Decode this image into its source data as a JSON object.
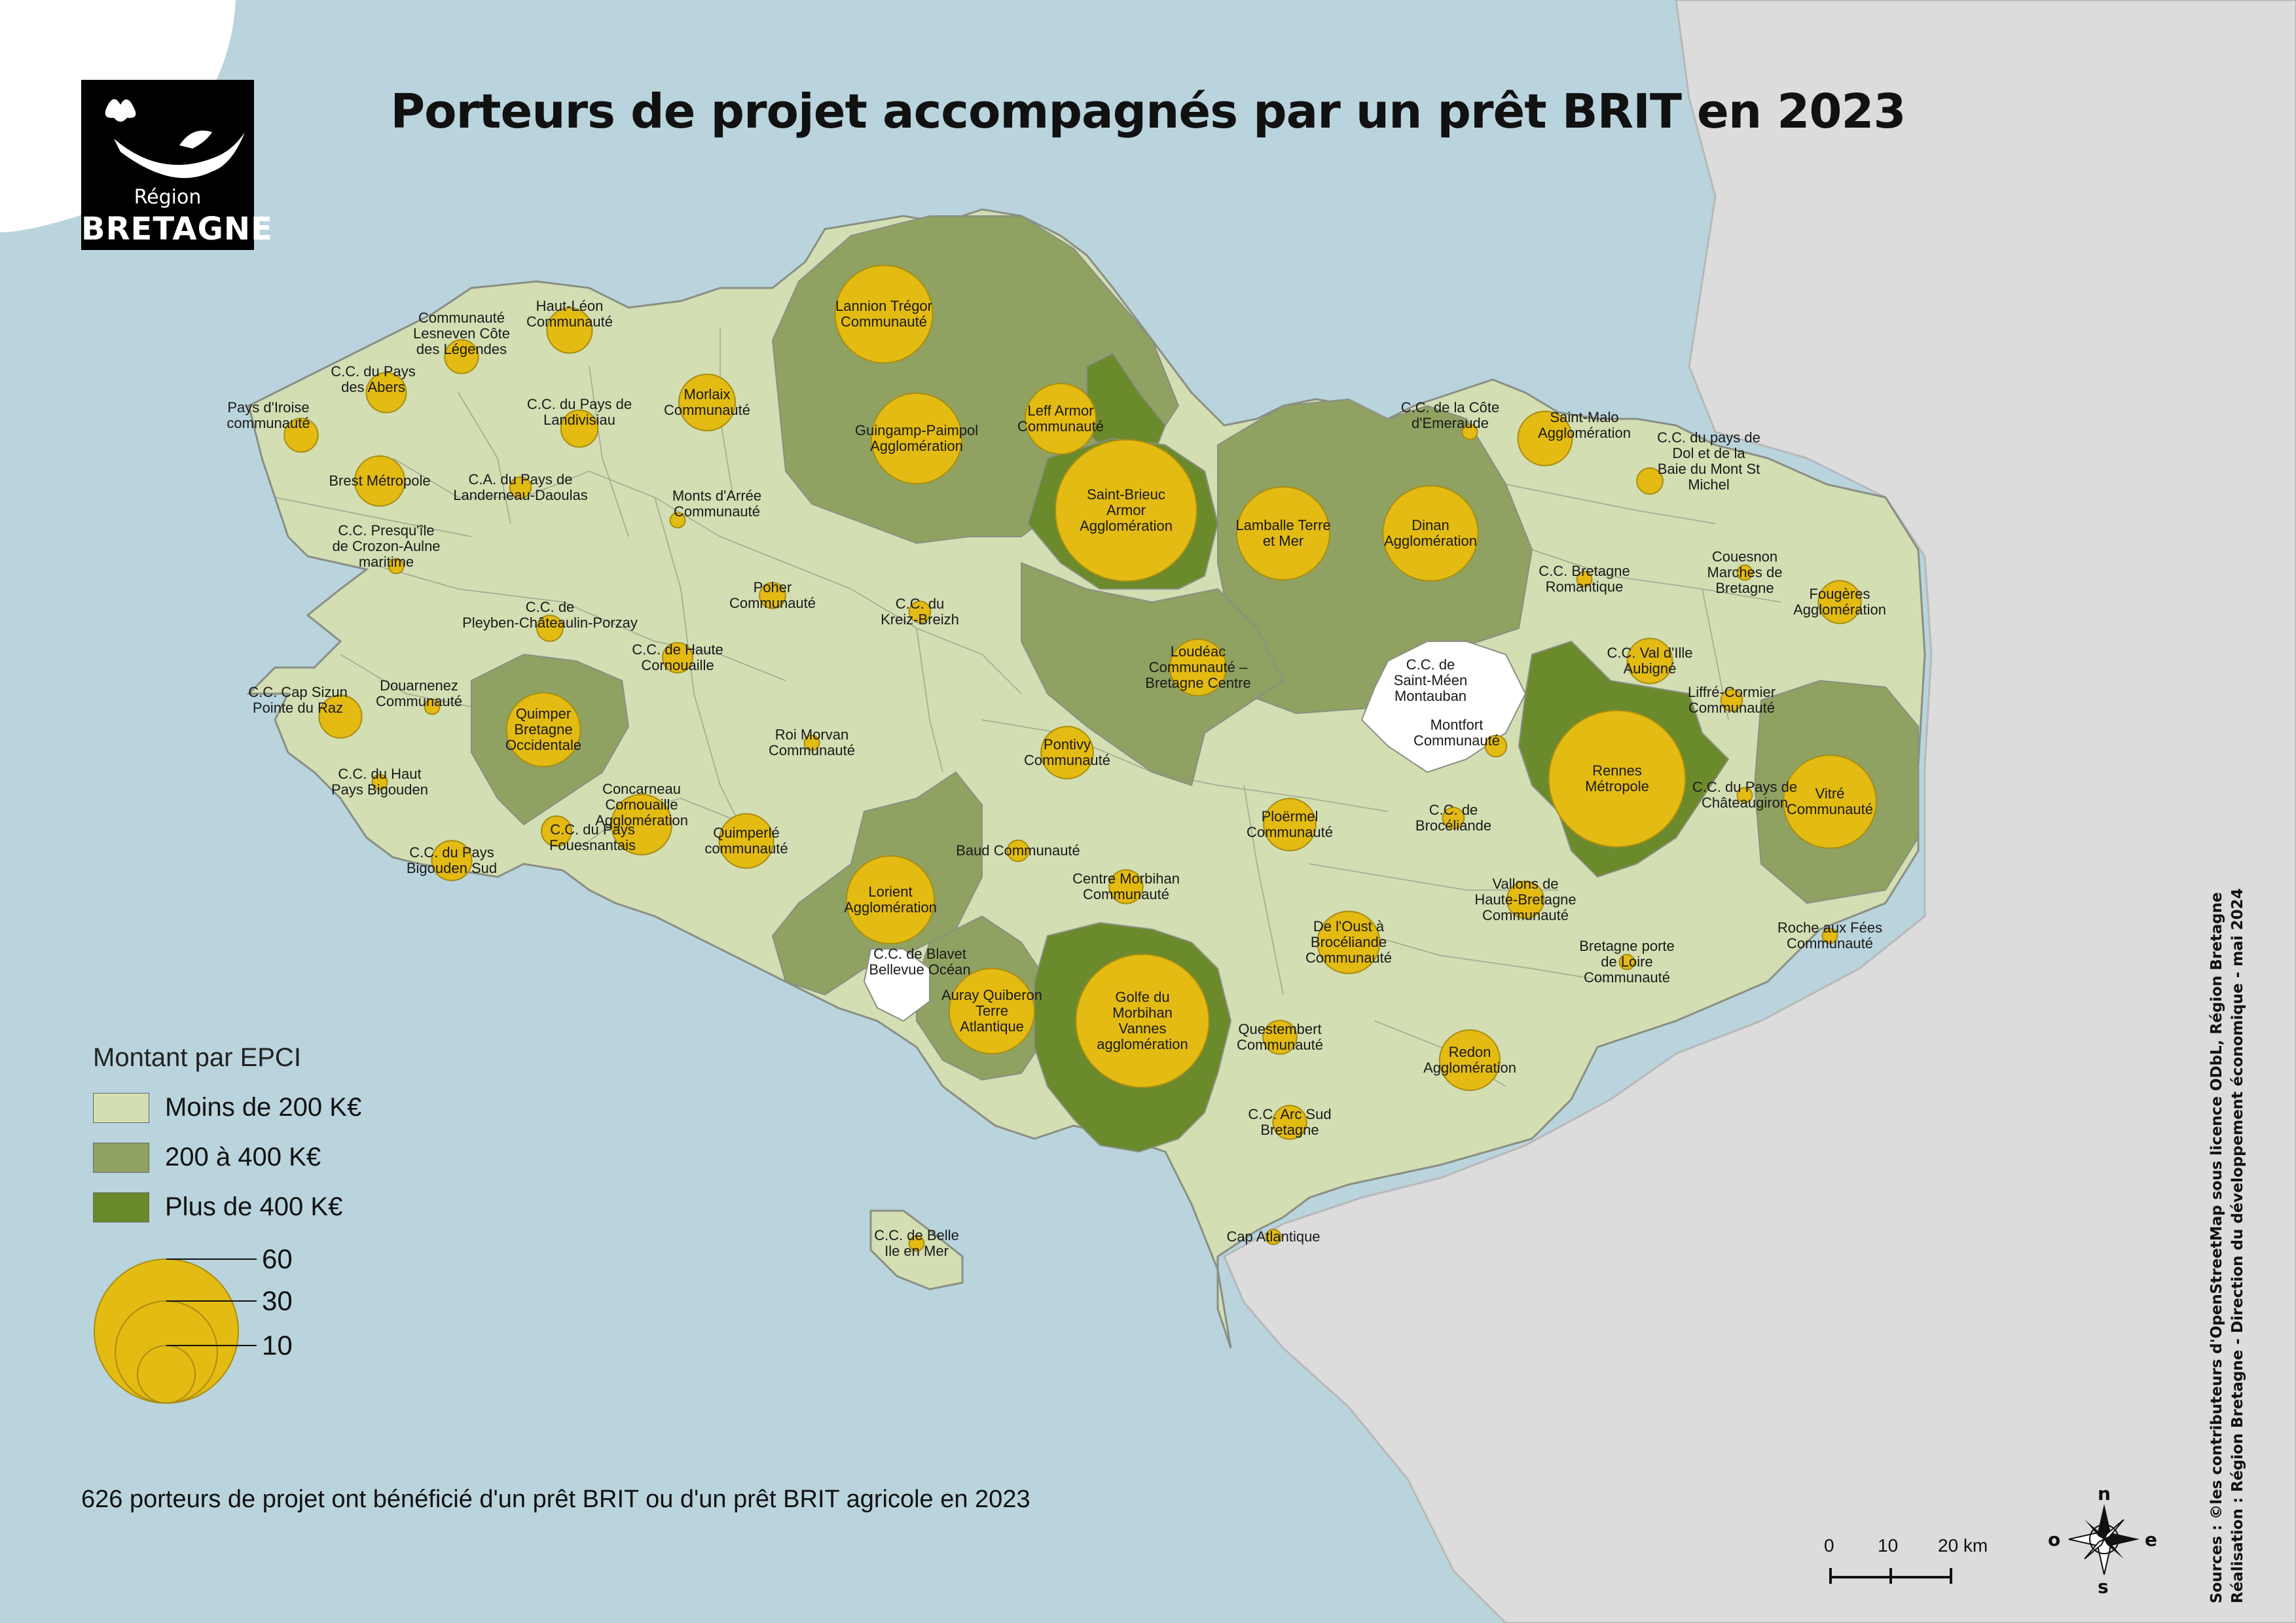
{
  "title": "Porteurs de projet accompagnés par un prêt BRIT en 2023",
  "logo": {
    "region": "Région",
    "name": "BRETAGNE",
    "icon": "hermine-icon"
  },
  "colors": {
    "sea": "#b9d4dd",
    "land_outside": "#dcdcdc",
    "class_low": "#d3deb3",
    "class_mid": "#8fa262",
    "class_high": "#6b8a2b",
    "no_data": "#ffffff",
    "circle": "#e3bb12",
    "circle_border": "#a88d12"
  },
  "legend": {
    "title": "Montant par EPCI",
    "classes": [
      {
        "label": "Moins de 200 K€",
        "color": "#d3deb3"
      },
      {
        "label": "200 à 400 K€",
        "color": "#8fa262"
      },
      {
        "label": "Plus de 400 K€",
        "color": "#6b8a2b"
      }
    ],
    "sizes": [
      "60",
      "30",
      "10"
    ]
  },
  "note": "626 porteurs de projet ont bénéficié d'un prêt BRIT ou d'un prêt BRIT agricole en 2023",
  "sources": {
    "line1": "Sources : ©les contributeurs d'OpenStreetMap sous licence ODbL, Région Bretagne",
    "line2": "Réalisation : Région Bretagne - Direction du développement économique - mai 2024"
  },
  "scale": {
    "labels": [
      "0",
      "10",
      "20 km"
    ]
  },
  "compass": {
    "n": "n",
    "s": "s",
    "e": "e",
    "o": "o"
  },
  "epci": [
    {
      "name": "Lannion Trégor Communauté",
      "lines": [
        "Lannion Trégor",
        "Communauté"
      ],
      "value": 42,
      "class": "mid"
    },
    {
      "name": "Guingamp-Paimpol Agglomération",
      "lines": [
        "Guingamp-Paimpol",
        "Agglomération"
      ],
      "value": 36,
      "class": "mid"
    },
    {
      "name": "Leff Armor Communauté",
      "lines": [
        "Leff Armor",
        "Communauté"
      ],
      "value": 22,
      "class": "high"
    },
    {
      "name": "Saint-Brieuc Armor Agglomération",
      "lines": [
        "Saint-Brieuc",
        "Armor",
        "Agglomération"
      ],
      "value": 88,
      "class": "high"
    },
    {
      "name": "Lamballe Terre et Mer",
      "lines": [
        "Lamballe Terre",
        "et Mer"
      ],
      "value": 38,
      "class": "mid"
    },
    {
      "name": "Dinan Agglomération",
      "lines": [
        "Dinan",
        "Agglomération"
      ],
      "value": 40,
      "class": "mid"
    },
    {
      "name": "C.C. de la Côte d'Emeraude",
      "lines": [
        "C.C. de la Côte",
        "d'Emeraude"
      ],
      "value": 1,
      "class": "low"
    },
    {
      "name": "Saint-Malo Agglomération",
      "lines": [
        "Saint-Malo",
        "Agglomération"
      ],
      "value": 13,
      "class": "low"
    },
    {
      "name": "C.C. du pays de Dol et de la Baie du Mont St Michel",
      "lines": [
        "C.C. du pays de",
        "Dol et de la",
        "Baie du Mont St",
        "Michel"
      ],
      "value": 3,
      "class": "low"
    },
    {
      "name": "Couesnon Marches de Bretagne",
      "lines": [
        "Couesnon",
        "Marches de",
        "Bretagne"
      ],
      "value": 1,
      "class": "low"
    },
    {
      "name": "Fougères Agglomération",
      "lines": [
        "Fougères",
        "Agglomération"
      ],
      "value": 8,
      "class": "low"
    },
    {
      "name": "C.C. Bretagne Romantique",
      "lines": [
        "C.C. Bretagne",
        "Romantique"
      ],
      "value": 1,
      "class": "low"
    },
    {
      "name": "C.C. Val d'Ille Aubigné",
      "lines": [
        "C.C. Val d'Ille",
        "Aubigné"
      ],
      "value": 9,
      "class": "low"
    },
    {
      "name": "Liffré-Cormier Communauté",
      "lines": [
        "Liffré-Cormier",
        "Communauté"
      ],
      "value": 2,
      "class": "low"
    },
    {
      "name": "Rennes Métropole",
      "lines": [
        "Rennes",
        "Métropole"
      ],
      "value": 82,
      "class": "high"
    },
    {
      "name": "Vitré Communauté",
      "lines": [
        "Vitré",
        "Communauté"
      ],
      "value": 38,
      "class": "mid"
    },
    {
      "name": "C.C. du Pays de Châteaugiron",
      "lines": [
        "C.C. du Pays de",
        "Châteaugiron"
      ],
      "value": 1,
      "class": "low"
    },
    {
      "name": "C.C. de Saint-Méen Montauban",
      "lines": [
        "C.C. de",
        "Saint-Méen",
        "Montauban"
      ],
      "value": 0,
      "class": "none"
    },
    {
      "name": "Montfort Communauté",
      "lines": [
        "Montfort",
        "Communauté"
      ],
      "value": 2,
      "class": "low"
    },
    {
      "name": "C.C. de Brocéliande",
      "lines": [
        "C.C. de",
        "Brocéliande"
      ],
      "value": 2,
      "class": "low"
    },
    {
      "name": "Vallons de Haute-Bretagne Communauté",
      "lines": [
        "Vallons de",
        "Haute-Bretagne",
        "Communauté"
      ],
      "value": 6,
      "class": "low"
    },
    {
      "name": "Roche aux Fées Communauté",
      "lines": [
        "Roche aux Fées",
        "Communauté"
      ],
      "value": 1,
      "class": "low"
    },
    {
      "name": "Bretagne porte de Loire Communauté",
      "lines": [
        "Bretagne porte",
        "de Loire",
        "Communauté"
      ],
      "value": 1,
      "class": "low"
    },
    {
      "name": "Redon Agglomération",
      "lines": [
        "Redon",
        "Agglomération"
      ],
      "value": 16,
      "class": "low"
    },
    {
      "name": "Loudéac Communauté - Bretagne Centre",
      "lines": [
        "Loudéac",
        "Communauté –",
        "Bretagne Centre"
      ],
      "value": 14,
      "class": "mid"
    },
    {
      "name": "Ploërmel Communauté",
      "lines": [
        "Ploërmel",
        "Communauté"
      ],
      "value": 12,
      "class": "low"
    },
    {
      "name": "De l'Oust à Brocéliande Communauté",
      "lines": [
        "De l'Oust à",
        "Brocéliande",
        "Communauté"
      ],
      "value": 17,
      "class": "low"
    },
    {
      "name": "Questembert Communauté",
      "lines": [
        "Questembert",
        "Communauté"
      ],
      "value": 5,
      "class": "low"
    },
    {
      "name": "C.C. Arc Sud Bretagne",
      "lines": [
        "C.C. Arc Sud",
        "Bretagne"
      ],
      "value": 5,
      "class": "low"
    },
    {
      "name": "Cap Atlantique",
      "lines": [
        "Cap Atlantique"
      ],
      "value": 1,
      "class": "low"
    },
    {
      "name": "Golfe du Morbihan Vannes agglomération",
      "lines": [
        "Golfe du",
        "Morbihan",
        "Vannes",
        "agglomération"
      ],
      "value": 78,
      "class": "high"
    },
    {
      "name": "Auray Quiberon Terre Atlantique",
      "lines": [
        "Auray Quiberon",
        "Terre",
        "Atlantique"
      ],
      "value": 32,
      "class": "mid"
    },
    {
      "name": "C.C. de Blavet Bellevue Océan",
      "lines": [
        "C.C. de Blavet",
        "Bellevue Océan"
      ],
      "value": 0,
      "class": "none"
    },
    {
      "name": "Lorient Agglomération",
      "lines": [
        "Lorient",
        "Agglomération"
      ],
      "value": 34,
      "class": "mid"
    },
    {
      "name": "Centre Morbihan Communauté",
      "lines": [
        "Centre Morbihan",
        "Communauté"
      ],
      "value": 5,
      "class": "low"
    },
    {
      "name": "Baud Communauté",
      "lines": [
        "Baud Communauté"
      ],
      "value": 2,
      "class": "low"
    },
    {
      "name": "Pontivy Communauté",
      "lines": [
        "Pontivy",
        "Communauté"
      ],
      "value": 12,
      "class": "low"
    },
    {
      "name": "Roi Morvan Communauté",
      "lines": [
        "Roi Morvan",
        "Communauté"
      ],
      "value": 1,
      "class": "low"
    },
    {
      "name": "Quimperlé communauté",
      "lines": [
        "Quimperlé",
        "communauté"
      ],
      "value": 13,
      "class": "low"
    },
    {
      "name": "Concarneau Cornouaille Agglomération",
      "lines": [
        "Concarneau",
        "Cornouaille",
        "Agglomération"
      ],
      "value": 16,
      "class": "low"
    },
    {
      "name": "C.C. du Pays Fouesnantais",
      "lines": [
        "C.C. du Pays",
        "Fouesnantais"
      ],
      "value": 4,
      "class": "low"
    },
    {
      "name": "C.C. du Pays Bigouden Sud",
      "lines": [
        "C.C. du Pays",
        "Bigouden Sud"
      ],
      "value": 7,
      "class": "low"
    },
    {
      "name": "C.C. du Haut Pays Bigouden",
      "lines": [
        "C.C. du Haut",
        "Pays Bigouden"
      ],
      "value": 1,
      "class": "low"
    },
    {
      "name": "Quimper Bretagne Occidentale",
      "lines": [
        "Quimper",
        "Bretagne",
        "Occidentale"
      ],
      "value": 24,
      "class": "mid"
    },
    {
      "name": "C.C. Cap Sizun Pointe du Raz",
      "lines": [
        "C.C. Cap Sizun",
        "Pointe du Raz"
      ],
      "value": 8,
      "class": "low"
    },
    {
      "name": "Douarnenez Communauté",
      "lines": [
        "Douarnenez",
        "Communauté"
      ],
      "value": 1,
      "class": "low"
    },
    {
      "name": "C.C. de Pleyben-Châteaulin-Porzay",
      "lines": [
        "C.C. de",
        "Pleyben-Châteaulin-Porzay"
      ],
      "value": 3,
      "class": "low"
    },
    {
      "name": "C.C. de Haute Cornouaille",
      "lines": [
        "C.C. de Haute",
        "Cornouaille"
      ],
      "value": 4,
      "class": "low"
    },
    {
      "name": "Poher Communauté",
      "lines": [
        "Poher",
        "Communauté"
      ],
      "value": 3,
      "class": "low"
    },
    {
      "name": "C.C. du Kreiz-Breizh",
      "lines": [
        "C.C. du",
        "Kreiz-Breizh"
      ],
      "value": 2,
      "class": "low"
    },
    {
      "name": "Monts d'Arrée Communauté",
      "lines": [
        "Monts d'Arrée",
        "Communauté"
      ],
      "value": 1,
      "class": "low"
    },
    {
      "name": "C.C. Presqu'île de Crozon-Aulne maritime",
      "lines": [
        "C.C. Presqu'île",
        "de Crozon-Aulne",
        "maritime"
      ],
      "value": 1,
      "class": "low"
    },
    {
      "name": "Brest Métropole",
      "lines": [
        "Brest Métropole"
      ],
      "value": 11,
      "class": "low"
    },
    {
      "name": "C.A. du Pays de Landerneau-Daoulas",
      "lines": [
        "C.A. du Pays de",
        "Landerneau-Daoulas"
      ],
      "value": 2,
      "class": "low"
    },
    {
      "name": "Pays d'Iroise communauté",
      "lines": [
        "Pays d'Iroise",
        "communauté"
      ],
      "value": 5,
      "class": "low"
    },
    {
      "name": "C.C. du Pays des Abers",
      "lines": [
        "C.C. du Pays",
        "des Abers"
      ],
      "value": 7,
      "class": "low"
    },
    {
      "name": "Communauté Lesneven Côte des Légendes",
      "lines": [
        "Communauté",
        "Lesneven Côte",
        "des Légendes"
      ],
      "value": 5,
      "class": "low"
    },
    {
      "name": "Haut-Léon Communauté",
      "lines": [
        "Haut-Léon",
        "Communauté"
      ],
      "value": 9,
      "class": "low"
    },
    {
      "name": "C.C. du Pays de Landivisiau",
      "lines": [
        "C.C. du Pays de",
        "Landivisiau"
      ],
      "value": 6,
      "class": "low"
    },
    {
      "name": "Morlaix Communauté",
      "lines": [
        "Morlaix",
        "Communauté"
      ],
      "value": 14,
      "class": "low"
    },
    {
      "name": "C.C. de Belle Ile en Mer",
      "lines": [
        "C.C. de Belle",
        "Ile en Mer"
      ],
      "value": 1,
      "class": "low"
    }
  ]
}
